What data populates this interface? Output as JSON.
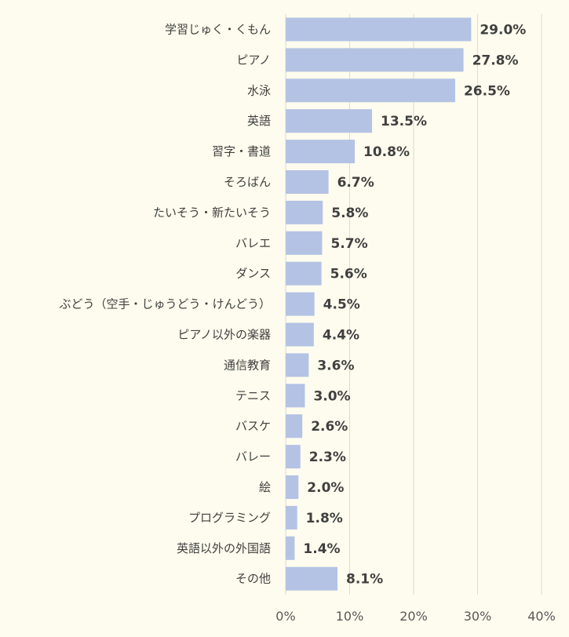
{
  "chart_data": {
    "type": "bar",
    "orientation": "horizontal",
    "categories": [
      "学習じゅく・くもん",
      "ピアノ",
      "水泳",
      "英語",
      "習字・書道",
      "そろばん",
      "たいそう・新たいそう",
      "バレエ",
      "ダンス",
      "ぶどう（空手・じゅうどう・けんどう）",
      "ピアノ以外の楽器",
      "通信教育",
      "テニス",
      "バスケ",
      "バレー",
      "絵",
      "プログラミング",
      "英語以外の外国語",
      "その他"
    ],
    "values": [
      29.0,
      27.8,
      26.5,
      13.5,
      10.8,
      6.7,
      5.8,
      5.7,
      5.6,
      4.5,
      4.4,
      3.6,
      3.0,
      2.6,
      2.3,
      2.0,
      1.8,
      1.4,
      8.1
    ],
    "value_labels": [
      "29.0%",
      "27.8%",
      "26.5%",
      "13.5%",
      "10.8%",
      "6.7%",
      "5.8%",
      "5.7%",
      "5.6%",
      "4.5%",
      "4.4%",
      "3.6%",
      "3.0%",
      "2.6%",
      "2.3%",
      "2.0%",
      "1.8%",
      "1.4%",
      "8.1%"
    ],
    "x_ticks": [
      "0%",
      "10%",
      "20%",
      "30%",
      "40%"
    ],
    "xlim": [
      0,
      40
    ],
    "title": "",
    "xlabel": "",
    "ylabel": "",
    "grid": true,
    "legend": "none",
    "colors": {
      "bar": "#b4c3e3",
      "background": "#fefcee",
      "grid": "#d9d9d9",
      "text": "#404040"
    }
  }
}
